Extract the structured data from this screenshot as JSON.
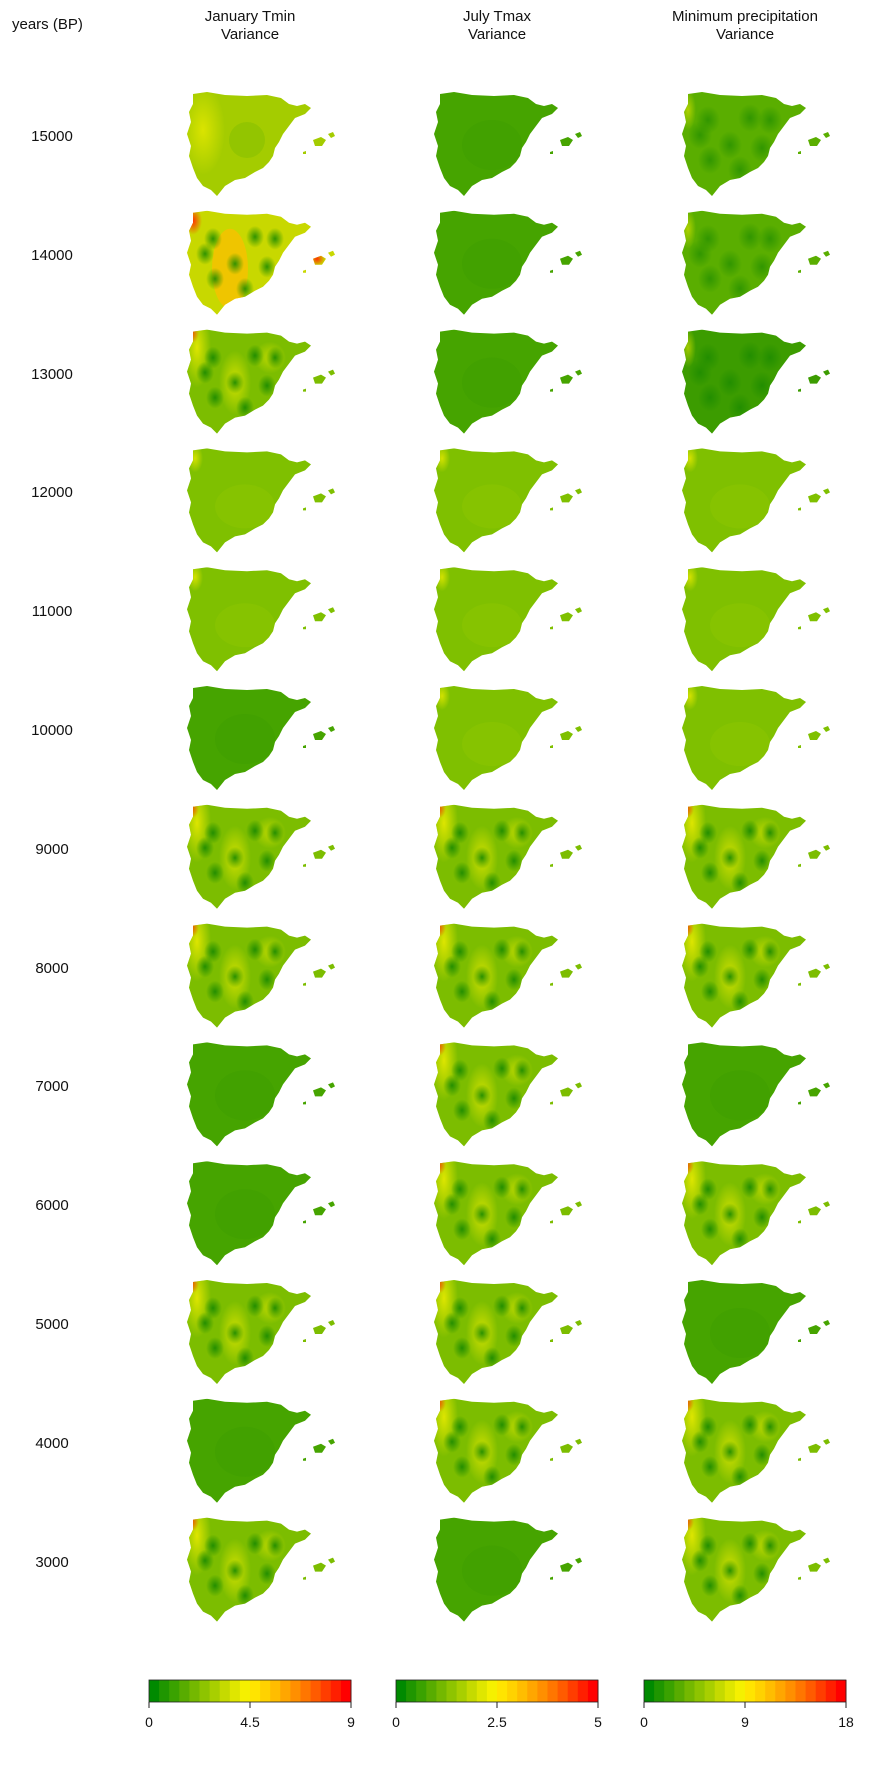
{
  "chart_data": {
    "type": "heatmap",
    "row_header": "years (BP)",
    "columns": [
      {
        "title_line1": "January Tmin",
        "title_line2": "Variance",
        "scale_ticks": [
          "0",
          "4.5",
          "9"
        ],
        "scale_max": 9
      },
      {
        "title_line1": "July Tmax",
        "title_line2": "Variance",
        "scale_ticks": [
          "0",
          "2.5",
          "5"
        ],
        "scale_max": 5
      },
      {
        "title_line1": "Minimum precipitation",
        "title_line2": "Variance",
        "scale_ticks": [
          "0",
          "9",
          "18"
        ],
        "scale_max": 18
      }
    ],
    "rows": [
      "15000",
      "14000",
      "13000",
      "12000",
      "11000",
      "10000",
      "9000",
      "8000",
      "7000",
      "6000",
      "5000",
      "4000",
      "3000"
    ],
    "map_style": [
      [
        "uniform-yellowgreen",
        "uniform-green",
        "blobs-green"
      ],
      [
        "hot-spots",
        "uniform-green",
        "blobs-green"
      ],
      [
        "blobs-mixed",
        "uniform-green",
        "blobs-darkgreen"
      ],
      [
        "uniform-lightgreen",
        "uniform-lightgreen",
        "uniform-lightgreen"
      ],
      [
        "uniform-lightgreen",
        "uniform-lightgreen",
        "uniform-lightgreen"
      ],
      [
        "uniform-green",
        "uniform-lightgreen",
        "uniform-lightgreen"
      ],
      [
        "blobs-mixed",
        "blobs-mixed",
        "blobs-mixed"
      ],
      [
        "blobs-mixed",
        "blobs-mixed",
        "blobs-mixed"
      ],
      [
        "uniform-green",
        "blobs-mixed",
        "uniform-green"
      ],
      [
        "uniform-green",
        "blobs-mixed",
        "blobs-mixed"
      ],
      [
        "blobs-mixed",
        "blobs-mixed",
        "uniform-green"
      ],
      [
        "uniform-green",
        "blobs-mixed",
        "blobs-mixed"
      ],
      [
        "blobs-mixed",
        "uniform-green",
        "blobs-mixed"
      ]
    ],
    "colorscale": [
      "#008a00",
      "#1f9600",
      "#3aa200",
      "#58ac00",
      "#74b800",
      "#8ec400",
      "#a8cf00",
      "#c5da00",
      "#dfe600",
      "#f5f000",
      "#ffe400",
      "#ffd200",
      "#ffbd00",
      "#ffa600",
      "#ff8f00",
      "#ff7600",
      "#ff5b00",
      "#ff3d00",
      "#ff1f00",
      "#ff0000"
    ]
  }
}
